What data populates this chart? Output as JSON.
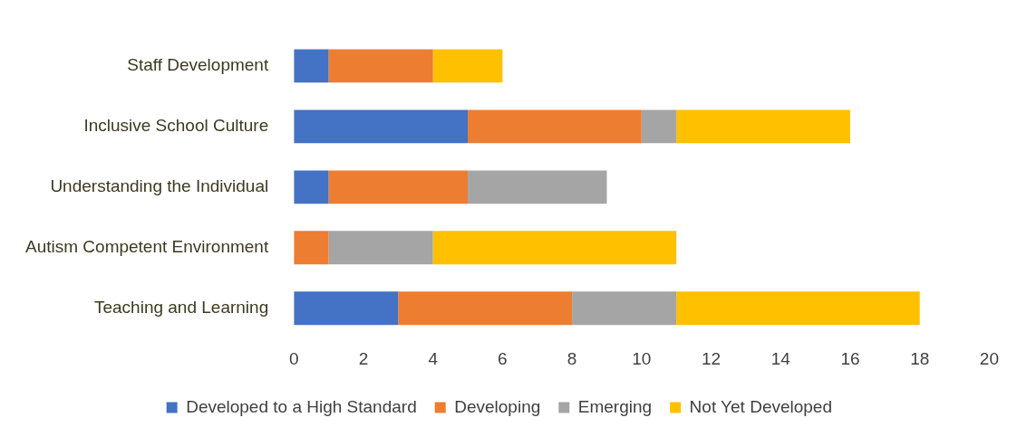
{
  "chart_data": {
    "type": "bar",
    "orientation": "horizontal",
    "stacked": true,
    "categories": [
      "Staff Development",
      "Inclusive School Culture",
      "Understanding the Individual",
      "Autism Competent Environment",
      "Teaching and Learning"
    ],
    "series": [
      {
        "name": "Developed to a High Standard",
        "color": "#4472c4",
        "values": [
          1,
          5,
          1,
          0,
          3
        ]
      },
      {
        "name": "Developing",
        "color": "#ed7d31",
        "values": [
          3,
          5,
          4,
          1,
          5
        ]
      },
      {
        "name": "Emerging",
        "color": "#a5a5a5",
        "values": [
          0,
          1,
          4,
          3,
          3
        ]
      },
      {
        "name": "Not Yet Developed",
        "color": "#ffc000",
        "values": [
          2,
          5,
          0,
          7,
          7
        ]
      }
    ],
    "xlim": [
      0,
      20
    ],
    "xticks": [
      0,
      2,
      4,
      6,
      8,
      10,
      12,
      14,
      16,
      18,
      20
    ],
    "grid": false,
    "legend": "bottom"
  }
}
